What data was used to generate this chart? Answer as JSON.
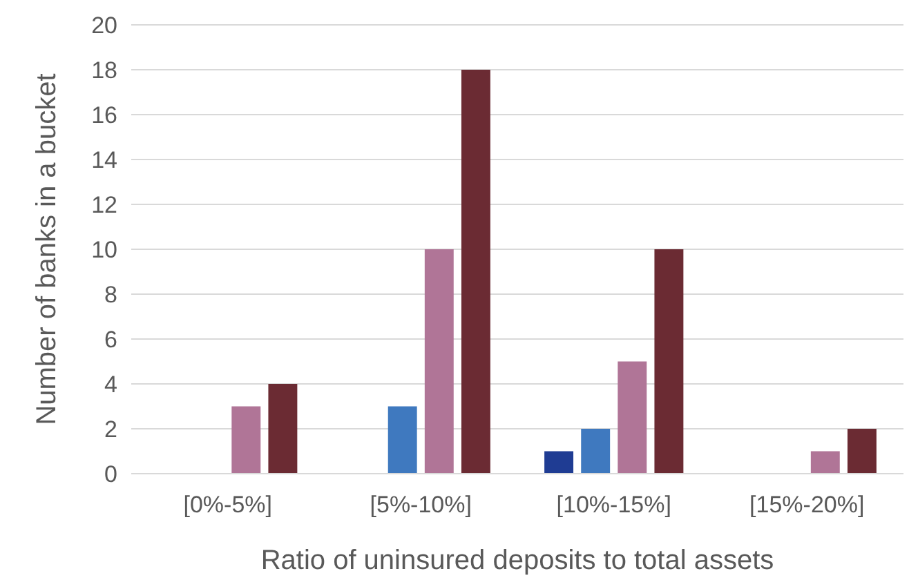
{
  "chart_data": {
    "type": "bar",
    "xlabel": "Ratio of uninsured deposits to total assets",
    "ylabel": "Number of banks in a bucket",
    "categories": [
      "[0%-5%]",
      "[5%-10%]",
      "[10%-15%]",
      "[15%-20%]"
    ],
    "series": [
      {
        "color": "#1f3c93",
        "values": [
          0,
          0,
          1,
          0
        ]
      },
      {
        "color": "#3f79bf",
        "values": [
          0,
          3,
          2,
          0
        ]
      },
      {
        "color": "#b07597",
        "values": [
          3,
          10,
          5,
          1
        ]
      },
      {
        "color": "#6b2b33",
        "values": [
          4,
          18,
          10,
          2
        ]
      }
    ],
    "ylim": [
      0,
      20
    ],
    "yticks": [
      0,
      2,
      4,
      6,
      8,
      10,
      12,
      14,
      16,
      18,
      20
    ],
    "grid": "y"
  }
}
